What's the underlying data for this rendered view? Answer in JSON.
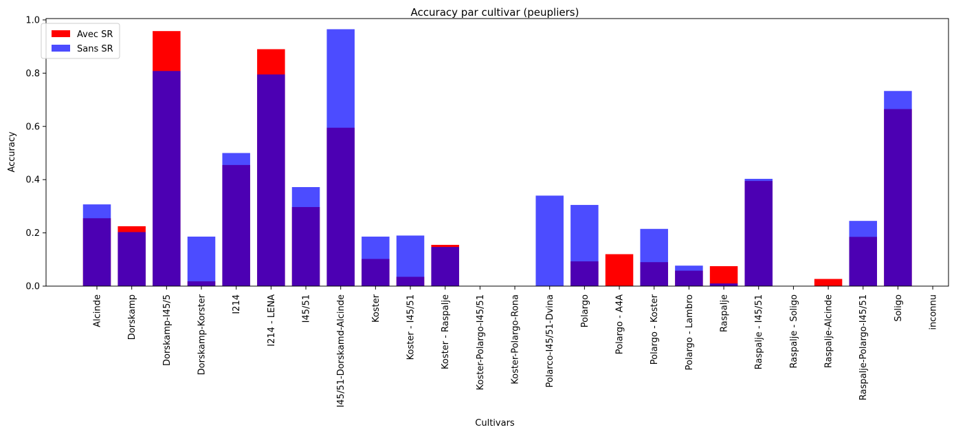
{
  "chart_data": {
    "type": "bar",
    "title": "Accuracy par cultivar (peupliers)",
    "xlabel": "Cultivars",
    "ylabel": "Accuracy",
    "ylim": [
      0,
      1.005
    ],
    "yticks": [
      "0.0",
      "0.2",
      "0.4",
      "0.6",
      "0.8",
      "1.0"
    ],
    "legend_position": "top-left",
    "categories": [
      "Alcinde",
      "Dorskamp",
      "Dorskamp-I45/5",
      "Dorskamp-Korster",
      "I214",
      "I214 - LENA",
      "I45/51",
      "I45/51-Dorskamd-Alcinde",
      "Koster",
      "Koster - I45/51",
      "Koster - Raspalje",
      "Koster-Polargo-I45/51",
      "Koster-Polargo-Rona",
      "Polarco-I45/51-Dvina",
      "Polargo",
      "Polargo - A4A",
      "Polargo - Koster",
      "Polargo - Lambro",
      "Raspalje",
      "Raspalje - I45/51",
      "Raspalje - Soligo",
      "Raspalje-Alcinde",
      "Raspalje-Polargo-I45/51",
      "Soligo",
      "inconnu"
    ],
    "series": [
      {
        "name": "Avec SR",
        "color": "#ff0000",
        "opacity": 1.0,
        "values": [
          0.255,
          0.225,
          0.958,
          0.018,
          0.455,
          0.89,
          0.297,
          0.595,
          0.102,
          0.035,
          0.155,
          0.0,
          0.0,
          0.0,
          0.093,
          0.12,
          0.09,
          0.058,
          0.075,
          0.395,
          0.0,
          0.027,
          0.185,
          0.665,
          0.0
        ]
      },
      {
        "name": "Sans SR",
        "color": "#0000ff",
        "opacity": 0.7,
        "values": [
          0.307,
          0.203,
          0.808,
          0.186,
          0.5,
          0.795,
          0.372,
          0.965,
          0.186,
          0.19,
          0.147,
          0.0,
          0.0,
          0.34,
          0.305,
          0.0,
          0.215,
          0.077,
          0.01,
          0.403,
          0.0,
          0.0,
          0.245,
          0.733,
          0.0
        ]
      }
    ]
  }
}
